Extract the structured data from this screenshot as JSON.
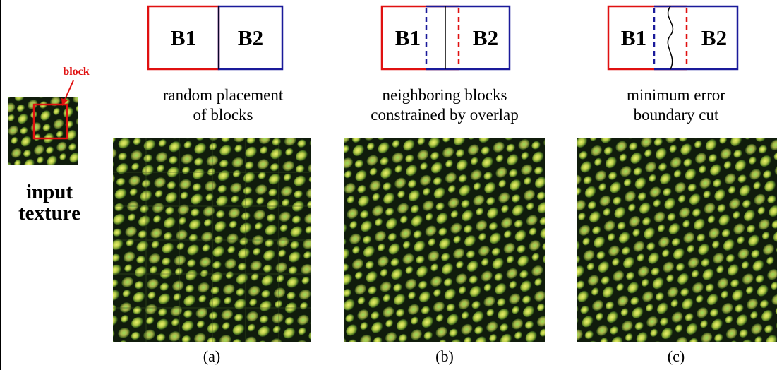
{
  "input": {
    "block_label": "block",
    "title_line1": "input",
    "title_line2": "texture"
  },
  "panels": [
    {
      "b1": "B1",
      "b2": "B2",
      "caption_line1": "random placement",
      "caption_line2": "of blocks",
      "label": "(a)"
    },
    {
      "b1": "B1",
      "b2": "B2",
      "caption_line1": "neighboring blocks",
      "caption_line2": "constrained by overlap",
      "label": "(b)"
    },
    {
      "b1": "B1",
      "b2": "B2",
      "caption_line1": "minimum error",
      "caption_line2": "boundary cut",
      "label": "(c)"
    }
  ]
}
